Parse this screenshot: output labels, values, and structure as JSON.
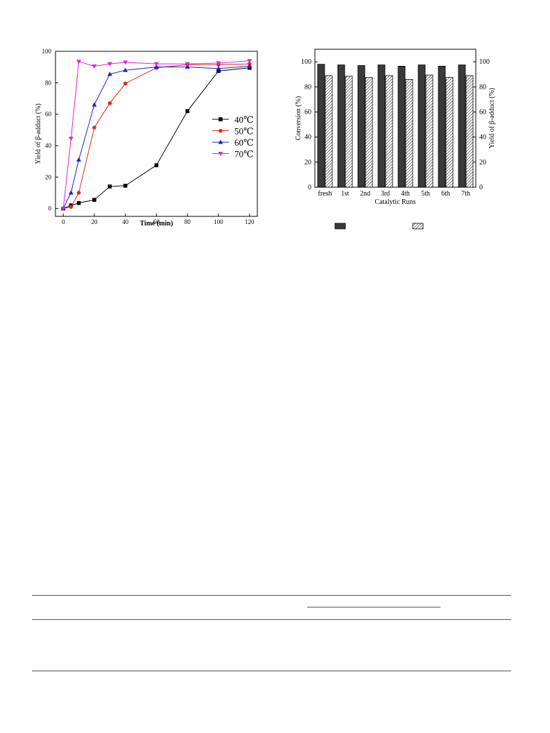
{
  "chart_data": [
    {
      "type": "line",
      "title": "",
      "xlabel": "Time (min)",
      "ylabel": "Yield of β-adduct (%)",
      "xlim": [
        -5,
        125
      ],
      "ylim": [
        -5,
        100
      ],
      "xticks": [
        "0",
        "20",
        "40",
        "60",
        "80",
        "100",
        "120"
      ],
      "yticks": [
        "0",
        "20",
        "40",
        "60",
        "80",
        "100"
      ],
      "legend_position": "right",
      "series": [
        {
          "name": "40℃",
          "color": "#000000",
          "marker": "square",
          "x": [
            0,
            5,
            10,
            20,
            30,
            40,
            60,
            80,
            100,
            120
          ],
          "y": [
            0,
            2,
            3.5,
            5.5,
            14,
            14.5,
            27.5,
            62,
            87.5,
            89.5
          ]
        },
        {
          "name": "50℃",
          "color": "#e8241c",
          "marker": "circle",
          "x": [
            0,
            5,
            10,
            20,
            30,
            40,
            60,
            80,
            100,
            120
          ],
          "y": [
            0,
            1,
            10,
            51.5,
            67,
            79.5,
            89.5,
            91.5,
            91.5,
            92
          ]
        },
        {
          "name": "60℃",
          "color": "#1a1ae0",
          "marker": "triangle-up",
          "x": [
            0,
            5,
            10,
            20,
            30,
            40,
            60,
            80,
            100,
            120
          ],
          "y": [
            0,
            10,
            31,
            66,
            85.5,
            88,
            90,
            90,
            89,
            90.5
          ]
        },
        {
          "name": "70℃",
          "color": "#e020e0",
          "marker": "triangle-down",
          "x": [
            0,
            5,
            10,
            20,
            30,
            40,
            60,
            80,
            100,
            120
          ],
          "y": [
            0,
            44.5,
            93.5,
            90.5,
            92,
            93,
            92,
            92,
            92.5,
            94
          ]
        }
      ]
    },
    {
      "type": "bar",
      "title": "",
      "xlabel": "Catalytic Runs",
      "ylabel": "Conversion (%)",
      "ylabel_right": "Yield of β-adduct (%)",
      "ylim": [
        0,
        110
      ],
      "yticks": [
        "0",
        "20",
        "40",
        "60",
        "80",
        "100"
      ],
      "categories": [
        "fresh",
        "1st",
        "2nd",
        "3rd",
        "4th",
        "5th",
        "6th",
        "7th"
      ],
      "series": [
        {
          "name": "",
          "fill": "#3a3a3a",
          "values": [
            98,
            97.5,
            97,
            97.5,
            96.5,
            97.5,
            96.5,
            97.5
          ]
        },
        {
          "name": "",
          "fill": "hatch",
          "values": [
            89,
            88.5,
            87.5,
            89,
            86,
            89.5,
            87.5,
            89
          ]
        }
      ]
    }
  ]
}
